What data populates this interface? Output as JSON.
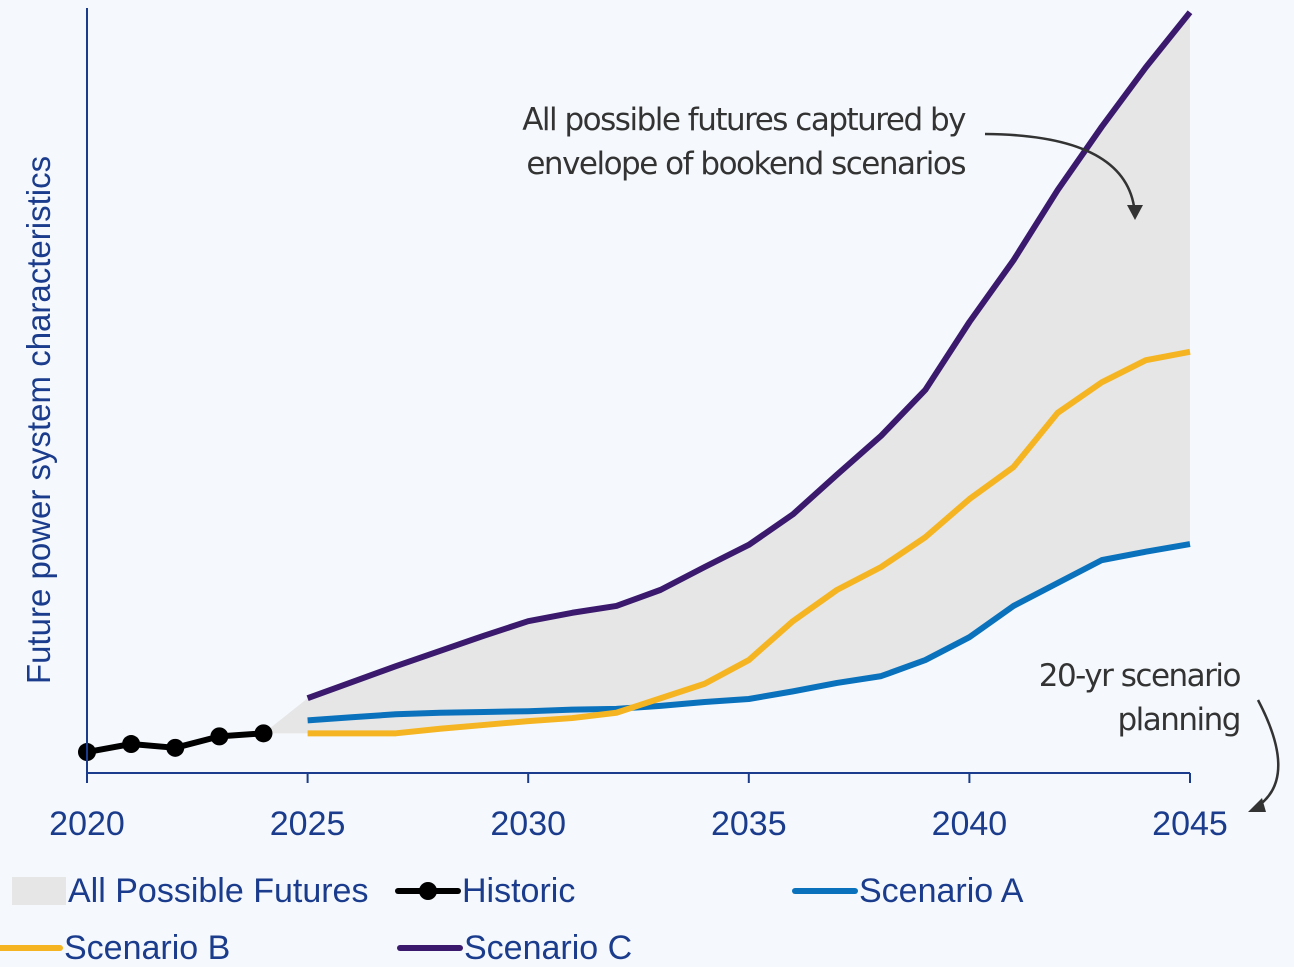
{
  "chart_data": {
    "type": "line",
    "y_label": "Future power system characteristics",
    "x": [
      2020,
      2021,
      2022,
      2023,
      2024,
      2025,
      2026,
      2027,
      2028,
      2029,
      2030,
      2031,
      2032,
      2033,
      2034,
      2035,
      2036,
      2037,
      2038,
      2039,
      2040,
      2041,
      2042,
      2043,
      2044,
      2045
    ],
    "xlim": [
      2020,
      2045
    ],
    "xticks": [
      2020,
      2025,
      2030,
      2035,
      2040,
      2045
    ],
    "ylim": [
      0,
      100
    ],
    "series": [
      {
        "name": "All Possible Futures",
        "kind": "area",
        "color": "#e6e6e6",
        "values": [
          null,
          null,
          null,
          null,
          5.2,
          9.8,
          11.9,
          14.0,
          16.0,
          18.0,
          19.9,
          21.0,
          21.9,
          24.0,
          27.0,
          29.9,
          33.9,
          39.1,
          44.2,
          50.2,
          59.1,
          67.2,
          76.4,
          84.7,
          92.5,
          99.7
        ],
        "lower": [
          null,
          null,
          null,
          null,
          5.2,
          5.2,
          5.2,
          5.2,
          5.8,
          6.3,
          6.8,
          7.2,
          7.9,
          8.8,
          9.3,
          9.7,
          10.7,
          11.8,
          12.7,
          14.8,
          17.8,
          21.9,
          24.9,
          27.9,
          29.0,
          30.0
        ]
      },
      {
        "name": "Historic",
        "color": "#000000",
        "markers": true,
        "values": [
          2.75,
          3.8,
          3.3,
          4.8,
          5.2,
          null,
          null,
          null,
          null,
          null,
          null,
          null,
          null,
          null,
          null,
          null,
          null,
          null,
          null,
          null,
          null,
          null,
          null,
          null,
          null,
          null
        ]
      },
      {
        "name": "Scenario A",
        "color": "#0a72bd",
        "values": [
          null,
          null,
          null,
          null,
          null,
          6.9,
          7.3,
          7.7,
          7.9,
          8.0,
          8.1,
          8.3,
          8.4,
          8.8,
          9.3,
          9.7,
          10.7,
          11.8,
          12.7,
          14.8,
          17.8,
          21.9,
          24.9,
          27.9,
          29.0,
          30.0
        ]
      },
      {
        "name": "Scenario B",
        "color": "#f5b523",
        "values": [
          null,
          null,
          null,
          null,
          null,
          5.2,
          5.2,
          5.2,
          5.8,
          6.3,
          6.8,
          7.2,
          7.9,
          9.8,
          11.7,
          14.8,
          19.9,
          24.0,
          27.0,
          30.9,
          35.9,
          40.1,
          47.2,
          51.2,
          54.1,
          55.2
        ]
      },
      {
        "name": "Scenario C",
        "color": "#3b1a6e",
        "values": [
          null,
          null,
          null,
          null,
          null,
          9.8,
          11.9,
          14.0,
          16.0,
          18.0,
          19.9,
          21.0,
          21.9,
          24.0,
          27.0,
          29.9,
          33.9,
          39.1,
          44.2,
          50.2,
          59.1,
          67.2,
          76.4,
          84.7,
          92.5,
          99.7
        ]
      }
    ],
    "annotations": [
      {
        "lines": [
          "All possible futures captured by",
          "envelope of bookend scenarios"
        ]
      },
      {
        "lines": [
          "20-yr scenario",
          "planning"
        ]
      }
    ]
  }
}
